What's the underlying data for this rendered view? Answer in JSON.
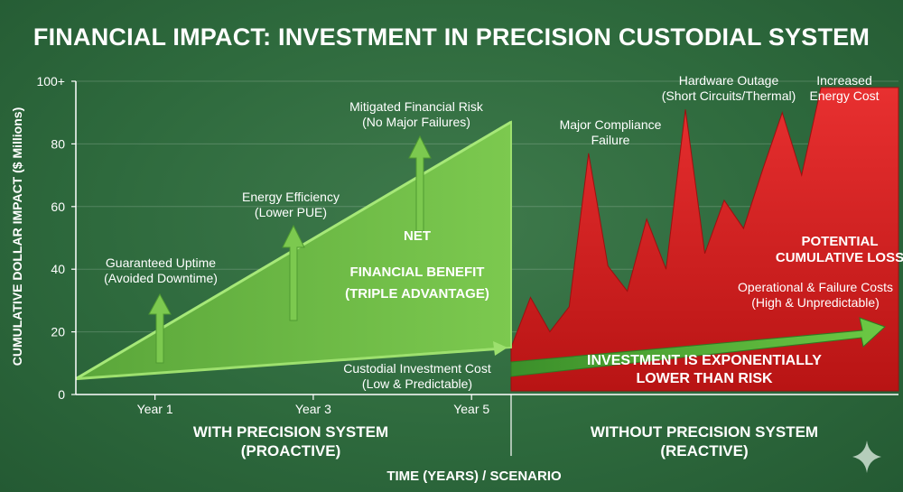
{
  "chart_data": {
    "type": "area",
    "title": "FINANCIAL IMPACT: INVESTMENT IN PRECISION CUSTODIAL SYSTEM",
    "ylabel": "CUMULATIVE DOLLAR IMPACT ($ Millions)",
    "xlabel": "TIME (YEARS) / SCENARIO",
    "ylim": [
      0,
      100
    ],
    "y_ticks": [
      "0",
      "20",
      "40",
      "60",
      "80",
      "100+"
    ],
    "y_tick_values": [
      0,
      20,
      40,
      60,
      80,
      100
    ],
    "x_ticks": [
      "Year 1",
      "Year 3",
      "Year 5"
    ],
    "x_tick_values": [
      1,
      3,
      5
    ],
    "grid": true,
    "scenarios": [
      {
        "name_line1": "WITH PRECISION SYSTEM",
        "name_line2": "(PROACTIVE)"
      },
      {
        "name_line1": "WITHOUT PRECISION SYSTEM",
        "name_line2": "(REACTIVE)"
      }
    ],
    "series": [
      {
        "key": "benefit",
        "x": [
          0,
          5.5
        ],
        "values": [
          5,
          87
        ],
        "color": "#6fbf45"
      },
      {
        "key": "investment",
        "x": [
          0,
          5.5
        ],
        "values": [
          5,
          15
        ],
        "color": "#3f9a2c"
      },
      {
        "key": "loss",
        "x": [
          0,
          0.5,
          1,
          1.5,
          2,
          2.5,
          3,
          3.5,
          4,
          4.5,
          5,
          5.5,
          6,
          6.5,
          7,
          7.5,
          8,
          8.5,
          9,
          9.5,
          10
        ],
        "values": [
          15,
          31,
          20,
          28,
          77,
          41,
          33,
          56,
          40,
          91,
          45,
          62,
          53,
          72,
          90,
          70,
          98,
          98,
          98,
          98,
          98
        ],
        "color": "#d42020"
      },
      {
        "key": "operational",
        "x": [
          0,
          10
        ],
        "values": [
          13,
          22
        ],
        "color": "#4fa83a"
      }
    ],
    "annotations": {
      "guaranteed_uptime": [
        "Guaranteed Uptime",
        "(Avoided Downtime)"
      ],
      "energy_efficiency": [
        "Energy Efficiency",
        "(Lower PUE)"
      ],
      "mitigated_risk": [
        "Mitigated Financial Risk",
        "(No Major Failures)"
      ],
      "net_benefit": [
        "NET",
        "FINANCIAL BENEFIT",
        "(TRIPLE ADVANTAGE)"
      ],
      "custodial_cost": [
        "Custodial Investment Cost",
        "(Low & Predictable)"
      ],
      "major_compliance": [
        "Major Compliance",
        "Failure"
      ],
      "hardware_outage": [
        "Hardware Outage",
        "(Short Circuits/Thermal)"
      ],
      "increased_energy": [
        "Increased",
        "Energy Cost"
      ],
      "potential_loss": [
        "POTENTIAL",
        "CUMULATIVE LOSS"
      ],
      "operational_costs": [
        "Operational & Failure Costs",
        "(High & Unpredictable)"
      ],
      "investment_lower": [
        "INVESTMENT IS EXPONENTIALLY",
        "LOWER THAN RISK"
      ]
    }
  }
}
